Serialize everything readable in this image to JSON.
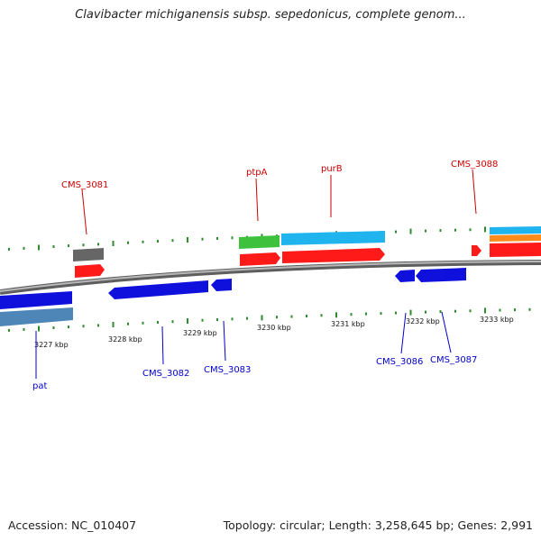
{
  "title": "Clavibacter michiganensis subsp. sepedonicus, complete genom...",
  "footer": {
    "accession": "Accession: NC_010407",
    "summary": "Topology: circular; Length: 3,258,645 bp; Genes: 2,991"
  },
  "colors": {
    "backbone": "#7f7f7f",
    "tick": "#2e8b2e",
    "forward_label": "#cc0000",
    "reverse_label": "#0000cc",
    "cds_forward": "#ff0000",
    "cds_reverse": "#0000ee",
    "gene_grey": "#666666",
    "gene_green": "#33bb33",
    "gene_cyan": "#1fb4ee",
    "gene_orange": "#ff8c1a",
    "gene_steelblue": "#4f86b8"
  },
  "scale_labels": [
    "3227 kbp",
    "3228 kbp",
    "3229 kbp",
    "3230 kbp",
    "3231 kbp",
    "3232 kbp",
    "3233 kbp"
  ],
  "forward_labels": [
    "CMS_3081",
    "ptpA",
    "purB",
    "CMS_3088"
  ],
  "reverse_labels": [
    "pat",
    "CMS_3082",
    "CMS_3083",
    "CMS_3086",
    "CMS_3087"
  ]
}
